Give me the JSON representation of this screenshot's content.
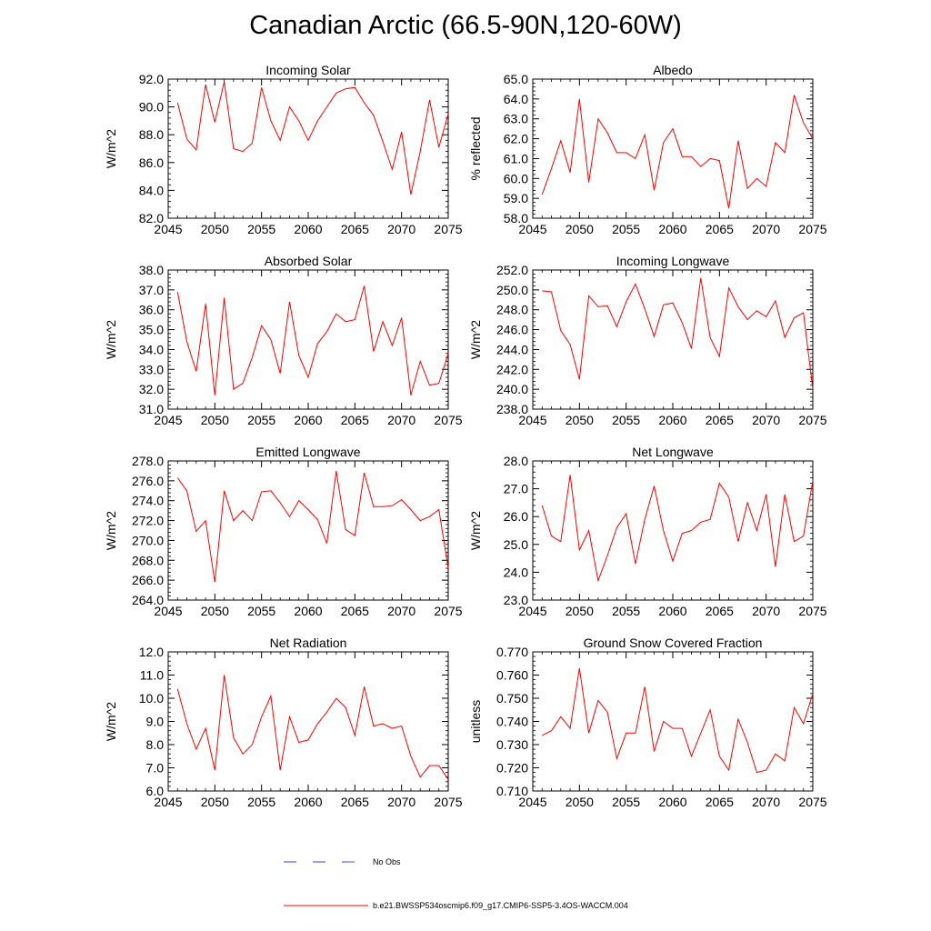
{
  "title": "Canadian Arctic (66.5-90N,120-60W)",
  "colors": {
    "series": "#ff0000",
    "obs": "#3b3bd6"
  },
  "legend": {
    "obs_label": "No Obs",
    "model_label": "b.e21.BWSSP534oscmip6.f09_g17.CMIP6-SSP5-3.4OS-WACCM.004"
  },
  "chart_data": [
    {
      "type": "line",
      "title": "Incoming Solar",
      "ylabel": "W/m^2",
      "xlim": [
        2045,
        2075
      ],
      "ylim": [
        82,
        92
      ],
      "yticks": [
        "82.0",
        "84.0",
        "86.0",
        "88.0",
        "90.0",
        "92.0"
      ],
      "xticks": [
        "2045",
        "2050",
        "2055",
        "2060",
        "2065",
        "2070",
        "2075"
      ],
      "x": [
        2046,
        2047,
        2048,
        2049,
        2050,
        2051,
        2052,
        2053,
        2054,
        2055,
        2056,
        2057,
        2058,
        2059,
        2060,
        2061,
        2062,
        2063,
        2064,
        2065,
        2066,
        2067,
        2068,
        2069,
        2070,
        2071,
        2072,
        2073,
        2074,
        2075
      ],
      "values": [
        90.3,
        87.7,
        86.9,
        91.6,
        88.9,
        91.8,
        87.0,
        86.8,
        87.4,
        91.4,
        89.0,
        87.6,
        90.0,
        89.0,
        87.6,
        89.0,
        90.0,
        91.0,
        91.3,
        91.4,
        90.3,
        89.4,
        87.5,
        85.5,
        88.2,
        83.7,
        86.8,
        90.5,
        87.1,
        89.5
      ]
    },
    {
      "type": "line",
      "title": "Albedo",
      "ylabel": "% reflected",
      "xlim": [
        2045,
        2075
      ],
      "ylim": [
        58,
        65
      ],
      "yticks": [
        "58.0",
        "59.0",
        "60.0",
        "61.0",
        "62.0",
        "63.0",
        "64.0",
        "65.0"
      ],
      "xticks": [
        "2045",
        "2050",
        "2055",
        "2060",
        "2065",
        "2070",
        "2075"
      ],
      "x": [
        2046,
        2047,
        2048,
        2049,
        2050,
        2051,
        2052,
        2053,
        2054,
        2055,
        2056,
        2057,
        2058,
        2059,
        2060,
        2061,
        2062,
        2063,
        2064,
        2065,
        2066,
        2067,
        2068,
        2069,
        2070,
        2071,
        2072,
        2073,
        2074,
        2075
      ],
      "values": [
        59.2,
        60.5,
        61.9,
        60.3,
        64.0,
        59.8,
        63.0,
        62.3,
        61.3,
        61.3,
        61.0,
        62.2,
        59.4,
        61.8,
        62.5,
        61.1,
        61.1,
        60.6,
        61.0,
        60.9,
        58.5,
        61.9,
        59.5,
        60.0,
        59.6,
        61.8,
        61.3,
        64.2,
        62.8,
        62.0
      ]
    },
    {
      "type": "line",
      "title": "Absorbed Solar",
      "ylabel": "W/m^2",
      "xlim": [
        2045,
        2075
      ],
      "ylim": [
        31,
        38
      ],
      "yticks": [
        "31.0",
        "32.0",
        "33.0",
        "34.0",
        "35.0",
        "36.0",
        "37.0",
        "38.0"
      ],
      "xticks": [
        "2045",
        "2050",
        "2055",
        "2060",
        "2065",
        "2070",
        "2075"
      ],
      "x": [
        2046,
        2047,
        2048,
        2049,
        2050,
        2051,
        2052,
        2053,
        2054,
        2055,
        2056,
        2057,
        2058,
        2059,
        2060,
        2061,
        2062,
        2063,
        2064,
        2065,
        2066,
        2067,
        2068,
        2069,
        2070,
        2071,
        2072,
        2073,
        2074,
        2075
      ],
      "values": [
        36.9,
        34.4,
        32.9,
        36.3,
        31.7,
        36.6,
        32.0,
        32.3,
        33.6,
        35.2,
        34.5,
        32.8,
        36.4,
        33.7,
        32.6,
        34.3,
        34.9,
        35.8,
        35.4,
        35.5,
        37.2,
        33.9,
        35.4,
        34.2,
        35.6,
        31.7,
        33.4,
        32.2,
        32.3,
        33.8
      ]
    },
    {
      "type": "line",
      "title": "Incoming Longwave",
      "ylabel": "W/m^2",
      "xlim": [
        2045,
        2075
      ],
      "ylim": [
        238,
        252
      ],
      "yticks": [
        "238.0",
        "240.0",
        "242.0",
        "244.0",
        "246.0",
        "248.0",
        "250.0",
        "252.0"
      ],
      "xticks": [
        "2045",
        "2050",
        "2055",
        "2060",
        "2065",
        "2070",
        "2075"
      ],
      "x": [
        2046,
        2047,
        2048,
        2049,
        2050,
        2051,
        2052,
        2053,
        2054,
        2055,
        2056,
        2057,
        2058,
        2059,
        2060,
        2061,
        2062,
        2063,
        2064,
        2065,
        2066,
        2067,
        2068,
        2069,
        2070,
        2071,
        2072,
        2073,
        2074,
        2075
      ],
      "values": [
        249.9,
        249.8,
        245.9,
        244.5,
        241.0,
        249.4,
        248.3,
        248.4,
        246.3,
        248.8,
        250.6,
        248.1,
        245.3,
        248.5,
        248.7,
        246.7,
        244.1,
        251.2,
        245.2,
        243.3,
        250.2,
        248.3,
        247.0,
        247.9,
        247.3,
        248.9,
        245.2,
        247.2,
        247.7,
        240.0
      ]
    },
    {
      "type": "line",
      "title": "Emitted Longwave",
      "ylabel": "W/m^2",
      "xlim": [
        2045,
        2075
      ],
      "ylim": [
        264,
        278
      ],
      "yticks": [
        "264.0",
        "266.0",
        "268.0",
        "270.0",
        "272.0",
        "274.0",
        "276.0",
        "278.0"
      ],
      "xticks": [
        "2045",
        "2050",
        "2055",
        "2060",
        "2065",
        "2070",
        "2075"
      ],
      "x": [
        2046,
        2047,
        2048,
        2049,
        2050,
        2051,
        2052,
        2053,
        2054,
        2055,
        2056,
        2057,
        2058,
        2059,
        2060,
        2061,
        2062,
        2063,
        2064,
        2065,
        2066,
        2067,
        2068,
        2069,
        2070,
        2071,
        2072,
        2073,
        2074,
        2075
      ],
      "values": [
        276.3,
        275.0,
        270.9,
        272.0,
        265.8,
        275.0,
        272.0,
        273.0,
        272.0,
        274.9,
        275.0,
        273.8,
        272.4,
        274.0,
        273.1,
        272.1,
        269.7,
        277.0,
        271.1,
        270.5,
        276.8,
        273.4,
        273.4,
        273.5,
        274.1,
        273.1,
        272.0,
        272.4,
        273.1,
        267.2
      ]
    },
    {
      "type": "line",
      "title": "Net Longwave",
      "ylabel": "W/m^2",
      "xlim": [
        2045,
        2075
      ],
      "ylim": [
        23,
        28
      ],
      "yticks": [
        "23.0",
        "24.0",
        "25.0",
        "26.0",
        "27.0",
        "28.0"
      ],
      "xticks": [
        "2045",
        "2050",
        "2055",
        "2060",
        "2065",
        "2070",
        "2075"
      ],
      "x": [
        2046,
        2047,
        2048,
        2049,
        2050,
        2051,
        2052,
        2053,
        2054,
        2055,
        2056,
        2057,
        2058,
        2059,
        2060,
        2061,
        2062,
        2063,
        2064,
        2065,
        2066,
        2067,
        2068,
        2069,
        2070,
        2071,
        2072,
        2073,
        2074,
        2075
      ],
      "values": [
        26.4,
        25.3,
        25.1,
        27.5,
        24.8,
        25.5,
        23.7,
        24.6,
        25.6,
        26.1,
        24.3,
        25.9,
        27.1,
        25.5,
        24.4,
        25.4,
        25.5,
        25.8,
        25.9,
        27.2,
        26.7,
        25.1,
        26.5,
        25.5,
        26.8,
        24.2,
        26.8,
        25.1,
        25.3,
        27.3
      ]
    },
    {
      "type": "line",
      "title": "Net Radiation",
      "ylabel": "W/m^2",
      "xlim": [
        2045,
        2075
      ],
      "ylim": [
        6,
        12
      ],
      "yticks": [
        "6.0",
        "7.0",
        "8.0",
        "9.0",
        "10.0",
        "11.0",
        "12.0"
      ],
      "xticks": [
        "2045",
        "2050",
        "2055",
        "2060",
        "2065",
        "2070",
        "2075"
      ],
      "x": [
        2046,
        2047,
        2048,
        2049,
        2050,
        2051,
        2052,
        2053,
        2054,
        2055,
        2056,
        2057,
        2058,
        2059,
        2060,
        2061,
        2062,
        2063,
        2064,
        2065,
        2066,
        2067,
        2068,
        2069,
        2070,
        2071,
        2072,
        2073,
        2074,
        2075
      ],
      "values": [
        10.4,
        8.9,
        7.8,
        8.7,
        6.9,
        11.0,
        8.3,
        7.6,
        8.0,
        9.2,
        10.1,
        6.9,
        9.2,
        8.1,
        8.2,
        8.9,
        9.4,
        10.0,
        9.6,
        8.4,
        10.5,
        8.8,
        8.9,
        8.7,
        8.8,
        7.5,
        6.6,
        7.1,
        7.1,
        6.5
      ]
    },
    {
      "type": "line",
      "title": "Ground Snow Covered Fraction",
      "ylabel": "unitless",
      "xlim": [
        2045,
        2075
      ],
      "ylim": [
        0.71,
        0.77
      ],
      "yticks": [
        "0.710",
        "0.720",
        "0.730",
        "0.740",
        "0.750",
        "0.760",
        "0.770"
      ],
      "xticks": [
        "2045",
        "2050",
        "2055",
        "2060",
        "2065",
        "2070",
        "2075"
      ],
      "x": [
        2046,
        2047,
        2048,
        2049,
        2050,
        2051,
        2052,
        2053,
        2054,
        2055,
        2056,
        2057,
        2058,
        2059,
        2060,
        2061,
        2062,
        2063,
        2064,
        2065,
        2066,
        2067,
        2068,
        2069,
        2070,
        2071,
        2072,
        2073,
        2074,
        2075
      ],
      "values": [
        0.734,
        0.736,
        0.742,
        0.737,
        0.763,
        0.735,
        0.749,
        0.744,
        0.724,
        0.735,
        0.735,
        0.755,
        0.727,
        0.74,
        0.737,
        0.737,
        0.725,
        0.735,
        0.745,
        0.725,
        0.719,
        0.741,
        0.731,
        0.718,
        0.719,
        0.726,
        0.723,
        0.746,
        0.739,
        0.752
      ]
    }
  ]
}
